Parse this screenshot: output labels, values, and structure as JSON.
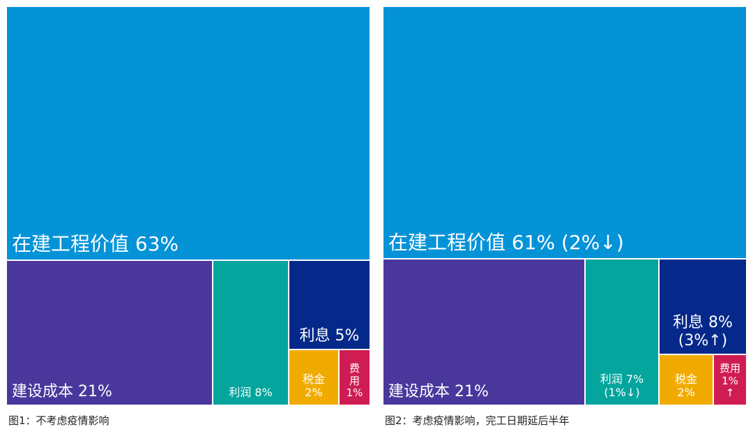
{
  "colors": {
    "wip": "#0593d8",
    "cost": "#4a379c",
    "profit": "#03a59c",
    "interest": "#05298a",
    "tax": "#f1ab00",
    "fee": "#cf1d54"
  },
  "chart_data": [
    {
      "type": "treemap",
      "caption": "图1：不考虑疫情影响",
      "items": [
        {
          "key": "wip",
          "name": "在建工程价值",
          "value": 63,
          "label": "在建工程价值 63%",
          "change": ""
        },
        {
          "key": "cost",
          "name": "建设成本",
          "value": 21,
          "label": "建设成本 21%",
          "change": ""
        },
        {
          "key": "profit",
          "name": "利润",
          "value": 8,
          "label": "利润 8%",
          "change": ""
        },
        {
          "key": "interest",
          "name": "利息",
          "value": 5,
          "label": "利息 5%",
          "change": ""
        },
        {
          "key": "tax",
          "name": "税金",
          "value": 2,
          "label": "税金\n2%",
          "change": ""
        },
        {
          "key": "fee",
          "name": "费用",
          "value": 1,
          "label": "费\n用\n1%",
          "change": ""
        }
      ]
    },
    {
      "type": "treemap",
      "caption": "图2：考虑疫情影响，完工日期延后半年",
      "items": [
        {
          "key": "wip",
          "name": "在建工程价值",
          "value": 61,
          "label": "在建工程价值 61% (2%↓)",
          "change": "2%↓"
        },
        {
          "key": "cost",
          "name": "建设成本",
          "value": 21,
          "label": "建设成本 21%",
          "change": ""
        },
        {
          "key": "profit",
          "name": "利润",
          "value": 7,
          "label": "利润 7%\n(1%↓)",
          "change": "1%↓"
        },
        {
          "key": "interest",
          "name": "利息",
          "value": 8,
          "label": "利息 8%\n(3%↑)",
          "change": "3%↑"
        },
        {
          "key": "tax",
          "name": "税金",
          "value": 2,
          "label": "税金\n2%",
          "change": ""
        },
        {
          "key": "fee",
          "name": "费用",
          "value": 1,
          "label": "费用\n1%\n↑",
          "change": "↑"
        }
      ]
    }
  ]
}
